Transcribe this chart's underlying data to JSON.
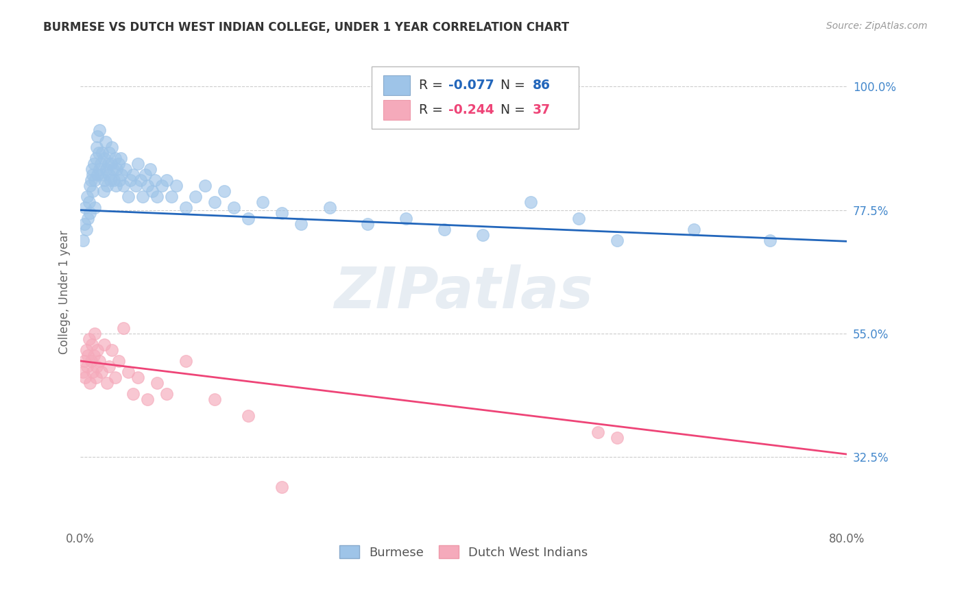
{
  "title": "BURMESE VS DUTCH WEST INDIAN COLLEGE, UNDER 1 YEAR CORRELATION CHART",
  "source": "Source: ZipAtlas.com",
  "ylabel": "College, Under 1 year",
  "xlim": [
    0.0,
    0.8
  ],
  "ylim": [
    0.2,
    1.05
  ],
  "yticks_right": [
    1.0,
    0.775,
    0.55,
    0.325
  ],
  "ytick_labels_right": [
    "100.0%",
    "77.5%",
    "55.0%",
    "32.5%"
  ],
  "watermark": "ZIPatlas",
  "blue_R": "-0.077",
  "blue_N": "86",
  "pink_R": "-0.244",
  "pink_N": "37",
  "blue_color": "#9EC4E8",
  "pink_color": "#F5AABB",
  "blue_line_color": "#2266BB",
  "pink_line_color": "#EE4477",
  "background_color": "#FFFFFF",
  "grid_color": "#CCCCCC",
  "blue_line_y_start": 0.775,
  "blue_line_y_end": 0.718,
  "pink_line_y_start": 0.5,
  "pink_line_y_end": 0.33,
  "blue_scatter_x": [
    0.003,
    0.004,
    0.005,
    0.006,
    0.007,
    0.008,
    0.009,
    0.01,
    0.01,
    0.011,
    0.012,
    0.013,
    0.013,
    0.014,
    0.015,
    0.015,
    0.016,
    0.017,
    0.018,
    0.018,
    0.019,
    0.02,
    0.02,
    0.021,
    0.022,
    0.023,
    0.024,
    0.025,
    0.025,
    0.026,
    0.027,
    0.028,
    0.029,
    0.03,
    0.03,
    0.031,
    0.032,
    0.033,
    0.034,
    0.035,
    0.036,
    0.037,
    0.038,
    0.04,
    0.041,
    0.042,
    0.043,
    0.045,
    0.047,
    0.05,
    0.052,
    0.055,
    0.058,
    0.06,
    0.063,
    0.065,
    0.068,
    0.07,
    0.073,
    0.075,
    0.078,
    0.08,
    0.085,
    0.09,
    0.095,
    0.1,
    0.11,
    0.12,
    0.13,
    0.14,
    0.15,
    0.16,
    0.175,
    0.19,
    0.21,
    0.23,
    0.26,
    0.3,
    0.34,
    0.38,
    0.42,
    0.47,
    0.52,
    0.56,
    0.64,
    0.72
  ],
  "blue_scatter_y": [
    0.72,
    0.75,
    0.78,
    0.74,
    0.8,
    0.76,
    0.79,
    0.82,
    0.77,
    0.83,
    0.85,
    0.81,
    0.84,
    0.86,
    0.83,
    0.78,
    0.87,
    0.89,
    0.84,
    0.91,
    0.88,
    0.85,
    0.92,
    0.86,
    0.84,
    0.88,
    0.81,
    0.87,
    0.83,
    0.9,
    0.85,
    0.82,
    0.86,
    0.88,
    0.84,
    0.83,
    0.86,
    0.89,
    0.85,
    0.83,
    0.87,
    0.82,
    0.85,
    0.86,
    0.83,
    0.87,
    0.84,
    0.82,
    0.85,
    0.8,
    0.83,
    0.84,
    0.82,
    0.86,
    0.83,
    0.8,
    0.84,
    0.82,
    0.85,
    0.81,
    0.83,
    0.8,
    0.82,
    0.83,
    0.8,
    0.82,
    0.78,
    0.8,
    0.82,
    0.79,
    0.81,
    0.78,
    0.76,
    0.79,
    0.77,
    0.75,
    0.78,
    0.75,
    0.76,
    0.74,
    0.73,
    0.79,
    0.76,
    0.72,
    0.74,
    0.72
  ],
  "pink_scatter_x": [
    0.003,
    0.004,
    0.005,
    0.006,
    0.007,
    0.008,
    0.009,
    0.01,
    0.011,
    0.012,
    0.013,
    0.014,
    0.015,
    0.016,
    0.017,
    0.018,
    0.02,
    0.022,
    0.025,
    0.028,
    0.03,
    0.033,
    0.036,
    0.04,
    0.045,
    0.05,
    0.055,
    0.06,
    0.07,
    0.08,
    0.09,
    0.11,
    0.14,
    0.175,
    0.21,
    0.54,
    0.56
  ],
  "pink_scatter_y": [
    0.48,
    0.5,
    0.47,
    0.52,
    0.49,
    0.51,
    0.54,
    0.46,
    0.5,
    0.53,
    0.48,
    0.51,
    0.55,
    0.47,
    0.49,
    0.52,
    0.5,
    0.48,
    0.53,
    0.46,
    0.49,
    0.52,
    0.47,
    0.5,
    0.56,
    0.48,
    0.44,
    0.47,
    0.43,
    0.46,
    0.44,
    0.5,
    0.43,
    0.4,
    0.27,
    0.37,
    0.36
  ]
}
